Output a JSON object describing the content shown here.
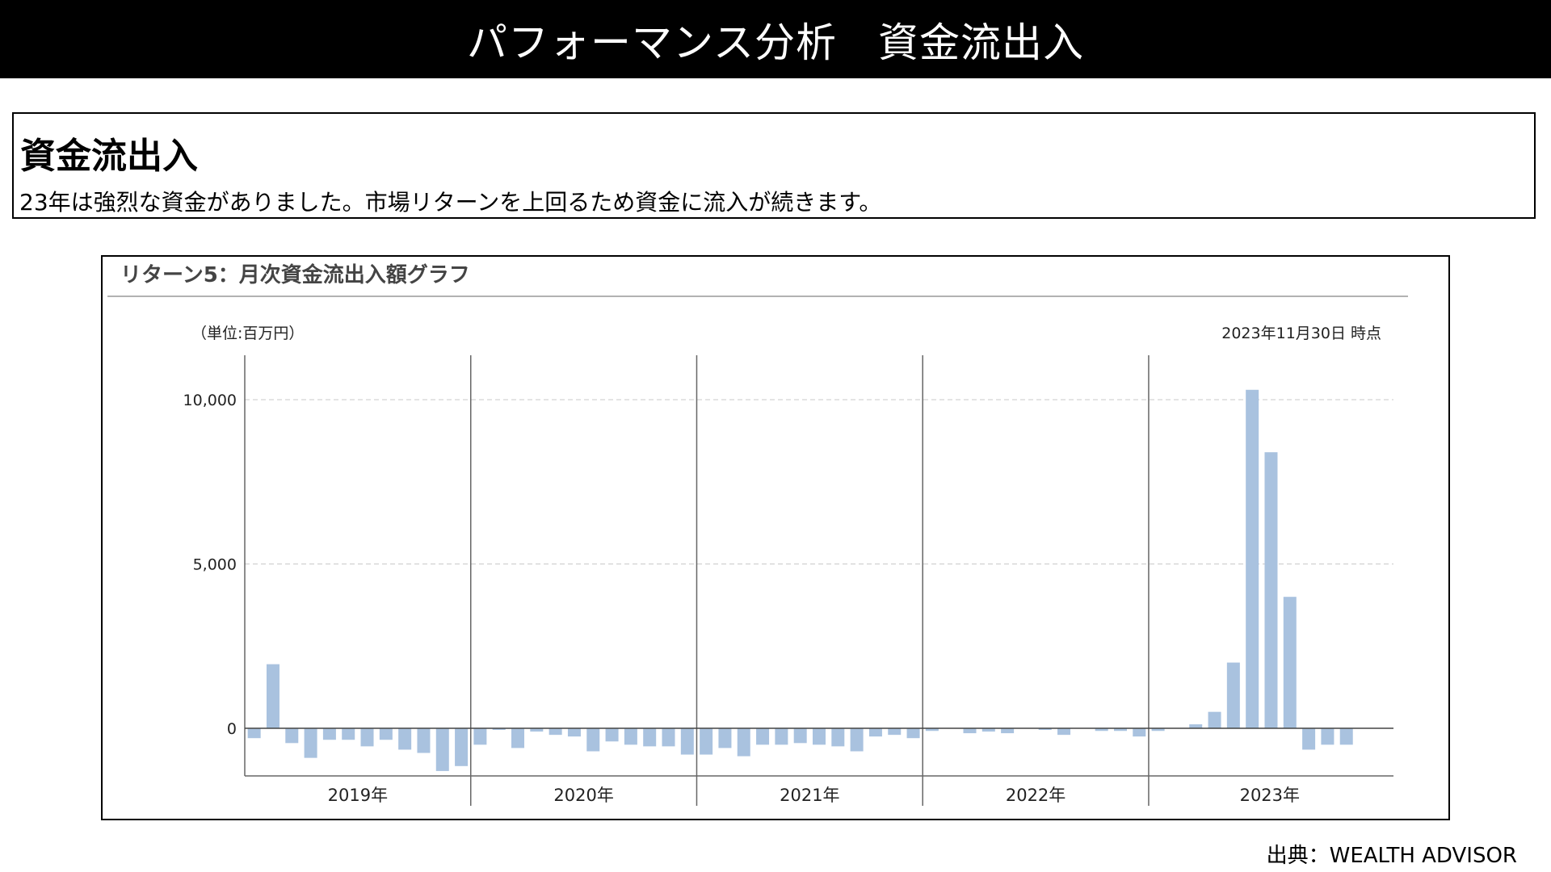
{
  "header": {
    "title": "パフォーマンス分析　資金流出入"
  },
  "summary": {
    "heading": "資金流出入",
    "text": "23年は強烈な資金がありました。市場リターンを上回るため資金に流入が続きます。"
  },
  "source": "出典：WEALTH ADVISOR",
  "colors": {
    "bar": "#a9c2df",
    "header_bg": "#000000"
  },
  "chart_data": {
    "type": "bar",
    "title": "リターン5：月次資金流出入額グラフ",
    "unit_label": "（単位:百万円）",
    "as_of": "2023年11月30日 時点",
    "ylim": [
      -1500,
      11200
    ],
    "yticks": [
      0,
      5000,
      10000
    ],
    "ytick_labels": [
      "0",
      "5,000",
      "10,000"
    ],
    "grid": "horizontal dashed at 5,000 and 10,000",
    "years": [
      "2019年",
      "2020年",
      "2021年",
      "2022年",
      "2023年"
    ],
    "series": [
      {
        "values": [
          -300,
          1950,
          -450,
          -900,
          -350,
          -350,
          -550,
          -350,
          -650,
          -750,
          -1300,
          -1150,
          -500,
          -50,
          -600,
          -100,
          -200,
          -250,
          -700,
          -400,
          -500,
          -550,
          -550,
          -800,
          -800,
          -600,
          -850,
          -500,
          -500,
          -450,
          -500,
          -550,
          -700,
          -250,
          -200,
          -300,
          -80,
          0,
          -150,
          -100,
          -150,
          0,
          -50,
          -200,
          0,
          -80,
          -80,
          -250,
          -80,
          0,
          120,
          500,
          2000,
          10300,
          8400,
          4000,
          -650,
          -500,
          -500
        ]
      }
    ]
  }
}
